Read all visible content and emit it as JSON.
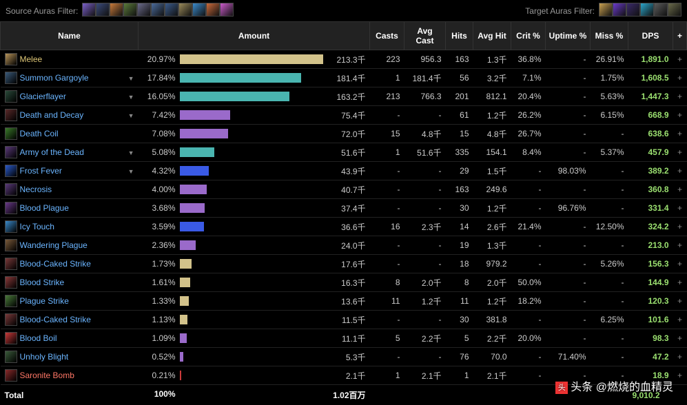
{
  "filters": {
    "source_label": "Source Auras Filter:",
    "target_label": "Target Auras Filter:",
    "source_colors": [
      "#7a5fc8",
      "#3a4a7a",
      "#c87a3a",
      "#5a7a3a",
      "#6a6a8a",
      "#4a6a9a",
      "#3a5a8a",
      "#9a8a5a",
      "#3a8aca",
      "#ca6a3a",
      "#ca5aca"
    ],
    "target_colors": [
      "#c8a050",
      "#6a3aca",
      "#3a2a6a",
      "#2aa5ca",
      "#5a5a5a",
      "#6a6a4a"
    ]
  },
  "columns": [
    "Name",
    "Amount",
    "Casts",
    "Avg Cast",
    "Hits",
    "Avg Hit",
    "Crit %",
    "Uptime %",
    "Miss %",
    "DPS",
    "+"
  ],
  "rows": [
    {
      "name": "Melee",
      "class": "yellow",
      "icon": "#b8955a",
      "expand": false,
      "pct": "20.97%",
      "pct_num": 20.97,
      "bar": "#d2c28a",
      "amount": "213.3千",
      "casts": "223",
      "avgcast": "956.3",
      "hits": "163",
      "avghit": "1.3千",
      "crit": "36.8%",
      "uptime": "-",
      "miss": "26.91%",
      "dps": "1,891.0"
    },
    {
      "name": "Summon Gargoyle",
      "class": "",
      "icon": "#3a5a7a",
      "expand": true,
      "pct": "17.84%",
      "pct_num": 17.84,
      "bar": "#4ab5b0",
      "amount": "181.4千",
      "casts": "1",
      "avgcast": "181.4千",
      "hits": "56",
      "avghit": "3.2千",
      "crit": "7.1%",
      "uptime": "-",
      "miss": "1.75%",
      "dps": "1,608.5"
    },
    {
      "name": "Glacierflayer",
      "class": "",
      "icon": "#2a4a3a",
      "expand": true,
      "pct": "16.05%",
      "pct_num": 16.05,
      "bar": "#4ab5b0",
      "amount": "163.2千",
      "casts": "213",
      "avgcast": "766.3",
      "hits": "201",
      "avghit": "812.1",
      "crit": "20.4%",
      "uptime": "-",
      "miss": "5.63%",
      "dps": "1,447.3"
    },
    {
      "name": "Death and Decay",
      "class": "",
      "icon": "#5a2a2a",
      "expand": true,
      "pct": "7.42%",
      "pct_num": 7.42,
      "bar": "#9a6aca",
      "amount": "75.4千",
      "casts": "-",
      "avgcast": "-",
      "hits": "61",
      "avghit": "1.2千",
      "crit": "26.2%",
      "uptime": "-",
      "miss": "6.15%",
      "dps": "668.9"
    },
    {
      "name": "Death Coil",
      "class": "",
      "icon": "#3a7a2a",
      "expand": false,
      "pct": "7.08%",
      "pct_num": 7.08,
      "bar": "#9a6aca",
      "amount": "72.0千",
      "casts": "15",
      "avgcast": "4.8千",
      "hits": "15",
      "avghit": "4.8千",
      "crit": "26.7%",
      "uptime": "-",
      "miss": "-",
      "dps": "638.6"
    },
    {
      "name": "Army of the Dead",
      "class": "",
      "icon": "#5a3a7a",
      "expand": true,
      "pct": "5.08%",
      "pct_num": 5.08,
      "bar": "#4ab5b0",
      "amount": "51.6千",
      "casts": "1",
      "avgcast": "51.6千",
      "hits": "335",
      "avghit": "154.1",
      "crit": "8.4%",
      "uptime": "-",
      "miss": "5.37%",
      "dps": "457.9"
    },
    {
      "name": "Frost Fever",
      "class": "",
      "icon": "#2a5aca",
      "expand": true,
      "pct": "4.32%",
      "pct_num": 4.32,
      "bar": "#3a5ae5",
      "amount": "43.9千",
      "casts": "-",
      "avgcast": "-",
      "hits": "29",
      "avghit": "1.5千",
      "crit": "-",
      "uptime": "98.03%",
      "miss": "-",
      "dps": "389.2"
    },
    {
      "name": "Necrosis",
      "class": "",
      "icon": "#5a3a7a",
      "expand": false,
      "pct": "4.00%",
      "pct_num": 4.0,
      "bar": "#9a6aca",
      "amount": "40.7千",
      "casts": "-",
      "avgcast": "-",
      "hits": "163",
      "avghit": "249.6",
      "crit": "-",
      "uptime": "-",
      "miss": "-",
      "dps": "360.8"
    },
    {
      "name": "Blood Plague",
      "class": "",
      "icon": "#6a3a8a",
      "expand": false,
      "pct": "3.68%",
      "pct_num": 3.68,
      "bar": "#9a6aca",
      "amount": "37.4千",
      "casts": "-",
      "avgcast": "-",
      "hits": "30",
      "avghit": "1.2千",
      "crit": "-",
      "uptime": "96.76%",
      "miss": "-",
      "dps": "331.4"
    },
    {
      "name": "Icy Touch",
      "class": "",
      "icon": "#3a8aca",
      "expand": false,
      "pct": "3.59%",
      "pct_num": 3.59,
      "bar": "#3a5ae5",
      "amount": "36.6千",
      "casts": "16",
      "avgcast": "2.3千",
      "hits": "14",
      "avghit": "2.6千",
      "crit": "21.4%",
      "uptime": "-",
      "miss": "12.50%",
      "dps": "324.2"
    },
    {
      "name": "Wandering Plague",
      "class": "",
      "icon": "#7a5a3a",
      "expand": false,
      "pct": "2.36%",
      "pct_num": 2.36,
      "bar": "#9a6aca",
      "amount": "24.0千",
      "casts": "-",
      "avgcast": "-",
      "hits": "19",
      "avghit": "1.3千",
      "crit": "-",
      "uptime": "-",
      "miss": "-",
      "dps": "213.0"
    },
    {
      "name": "Blood-Caked Strike",
      "class": "",
      "icon": "#7a3a3a",
      "expand": false,
      "pct": "1.73%",
      "pct_num": 1.73,
      "bar": "#d2c28a",
      "amount": "17.6千",
      "casts": "-",
      "avgcast": "-",
      "hits": "18",
      "avghit": "979.2",
      "crit": "-",
      "uptime": "-",
      "miss": "5.26%",
      "dps": "156.3"
    },
    {
      "name": "Blood Strike",
      "class": "",
      "icon": "#8a3a3a",
      "expand": false,
      "pct": "1.61%",
      "pct_num": 1.61,
      "bar": "#d2c28a",
      "amount": "16.3千",
      "casts": "8",
      "avgcast": "2.0千",
      "hits": "8",
      "avghit": "2.0千",
      "crit": "50.0%",
      "uptime": "-",
      "miss": "-",
      "dps": "144.9"
    },
    {
      "name": "Plague Strike",
      "class": "",
      "icon": "#4a7a3a",
      "expand": false,
      "pct": "1.33%",
      "pct_num": 1.33,
      "bar": "#d2c28a",
      "amount": "13.6千",
      "casts": "11",
      "avgcast": "1.2千",
      "hits": "11",
      "avghit": "1.2千",
      "crit": "18.2%",
      "uptime": "-",
      "miss": "-",
      "dps": "120.3"
    },
    {
      "name": "Blood-Caked Strike",
      "class": "",
      "icon": "#7a3a3a",
      "expand": false,
      "pct": "1.13%",
      "pct_num": 1.13,
      "bar": "#d2c28a",
      "amount": "11.5千",
      "casts": "-",
      "avgcast": "-",
      "hits": "30",
      "avghit": "381.8",
      "crit": "-",
      "uptime": "-",
      "miss": "6.25%",
      "dps": "101.6"
    },
    {
      "name": "Blood Boil",
      "class": "",
      "icon": "#ca3a3a",
      "expand": false,
      "pct": "1.09%",
      "pct_num": 1.09,
      "bar": "#9a6aca",
      "amount": "11.1千",
      "casts": "5",
      "avgcast": "2.2千",
      "hits": "5",
      "avghit": "2.2千",
      "crit": "20.0%",
      "uptime": "-",
      "miss": "-",
      "dps": "98.3"
    },
    {
      "name": "Unholy Blight",
      "class": "",
      "icon": "#3a5a3a",
      "expand": false,
      "pct": "0.52%",
      "pct_num": 0.52,
      "bar": "#9a6aca",
      "amount": "5.3千",
      "casts": "-",
      "avgcast": "-",
      "hits": "76",
      "avghit": "70.0",
      "crit": "-",
      "uptime": "71.40%",
      "miss": "-",
      "dps": "47.2"
    },
    {
      "name": "Saronite Bomb",
      "class": "red",
      "icon": "#8a2a2a",
      "expand": false,
      "pct": "0.21%",
      "pct_num": 0.21,
      "bar": "#ca3a3a",
      "amount": "2.1千",
      "casts": "1",
      "avgcast": "2.1千",
      "hits": "1",
      "avghit": "2.1千",
      "crit": "-",
      "uptime": "-",
      "miss": "-",
      "dps": "18.9"
    }
  ],
  "total": {
    "label": "Total",
    "pct": "100%",
    "amount": "1.02百万",
    "dps": "9,010.2"
  },
  "max_pct": 20.97,
  "watermark": "头条 @燃烧的血精灵"
}
